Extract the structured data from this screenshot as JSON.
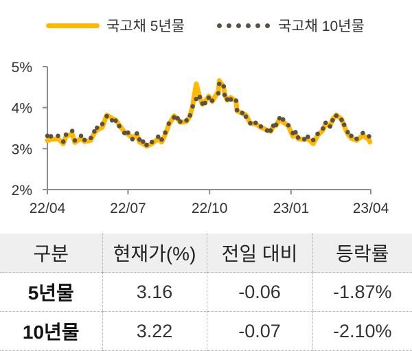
{
  "colors": {
    "series_5y": "#FFB900",
    "series_10y": "#5B5046",
    "axis": "#8c8c8c"
  },
  "chart_data": {
    "type": "line",
    "title": "",
    "xlabel": "",
    "ylabel": "",
    "ylim": [
      2,
      5
    ],
    "yticks": [
      "2%",
      "3%",
      "4%",
      "5%"
    ],
    "ytick_values": [
      2,
      3,
      4,
      5
    ],
    "xlim": [
      "2022-04-01",
      "2023-04-01"
    ],
    "xticks": [
      "22/04",
      "22/07",
      "22/10",
      "23/01",
      "23/04"
    ],
    "xtick_dates": [
      "2022-04-01",
      "2022-07-01",
      "2022-10-01",
      "2023-01-01",
      "2023-04-01"
    ],
    "grid": false,
    "legend_position": "top",
    "series": [
      {
        "name": "국고채 5년물",
        "style": "line",
        "x": [
          "2022-04-01",
          "2022-04-05",
          "2022-04-13",
          "2022-04-19",
          "2022-04-22",
          "2022-04-29",
          "2022-05-02",
          "2022-05-09",
          "2022-05-13",
          "2022-05-20",
          "2022-05-24",
          "2022-05-27",
          "2022-06-02",
          "2022-06-07",
          "2022-06-13",
          "2022-06-17",
          "2022-06-21",
          "2022-06-27",
          "2022-07-01",
          "2022-07-06",
          "2022-07-11",
          "2022-07-14",
          "2022-07-18",
          "2022-07-22",
          "2022-07-28",
          "2022-08-04",
          "2022-08-08",
          "2022-08-12",
          "2022-08-16",
          "2022-08-22",
          "2022-08-26",
          "2022-08-29",
          "2022-09-05",
          "2022-09-09",
          "2022-09-12",
          "2022-09-16",
          "2022-09-20",
          "2022-09-23",
          "2022-09-26",
          "2022-09-30",
          "2022-10-04",
          "2022-10-11",
          "2022-10-12",
          "2022-10-17",
          "2022-10-18",
          "2022-10-21",
          "2022-10-25",
          "2022-10-31",
          "2022-11-01",
          "2022-11-07",
          "2022-11-11",
          "2022-11-16",
          "2022-11-22",
          "2022-11-28",
          "2022-12-05",
          "2022-12-09",
          "2022-12-12",
          "2022-12-15",
          "2022-12-19",
          "2022-12-23",
          "2022-12-29",
          "2023-01-03",
          "2023-01-06",
          "2023-01-09",
          "2023-01-16",
          "2023-01-20",
          "2023-01-26",
          "2023-01-31",
          "2023-02-06",
          "2023-02-09",
          "2023-02-14",
          "2023-02-17",
          "2023-02-21",
          "2023-02-27",
          "2023-03-02",
          "2023-03-06",
          "2023-03-10",
          "2023-03-16",
          "2023-03-23",
          "2023-03-30",
          "2023-03-31"
        ],
        "y": [
          3.2,
          3.22,
          3.24,
          3.12,
          3.3,
          3.36,
          3.15,
          3.25,
          3.17,
          3.2,
          3.38,
          3.45,
          3.52,
          3.82,
          3.74,
          3.7,
          3.58,
          3.4,
          3.35,
          3.26,
          3.34,
          3.16,
          3.12,
          3.06,
          3.12,
          3.24,
          3.16,
          3.34,
          3.58,
          3.8,
          3.72,
          3.64,
          3.66,
          3.8,
          4.05,
          4.58,
          4.25,
          4.08,
          4.15,
          4.28,
          4.15,
          4.4,
          4.66,
          4.5,
          4.32,
          4.18,
          4.25,
          4.15,
          3.92,
          3.86,
          3.82,
          3.62,
          3.6,
          3.52,
          3.45,
          3.42,
          3.55,
          3.56,
          3.72,
          3.65,
          3.55,
          3.3,
          3.36,
          3.24,
          3.22,
          3.24,
          3.12,
          3.32,
          3.45,
          3.6,
          3.55,
          3.72,
          3.82,
          3.72,
          3.55,
          3.36,
          3.25,
          3.2,
          3.32,
          3.22,
          3.16
        ]
      },
      {
        "name": "국고채 10년물",
        "style": "dots",
        "x": [
          "2022-04-01",
          "2022-04-05",
          "2022-04-13",
          "2022-04-19",
          "2022-04-22",
          "2022-04-29",
          "2022-05-02",
          "2022-05-09",
          "2022-05-13",
          "2022-05-20",
          "2022-05-24",
          "2022-05-27",
          "2022-06-02",
          "2022-06-07",
          "2022-06-13",
          "2022-06-17",
          "2022-06-21",
          "2022-06-27",
          "2022-07-01",
          "2022-07-06",
          "2022-07-11",
          "2022-07-14",
          "2022-07-18",
          "2022-07-22",
          "2022-07-28",
          "2022-08-04",
          "2022-08-08",
          "2022-08-12",
          "2022-08-16",
          "2022-08-22",
          "2022-08-26",
          "2022-08-29",
          "2022-09-05",
          "2022-09-09",
          "2022-09-12",
          "2022-09-16",
          "2022-09-20",
          "2022-09-23",
          "2022-09-26",
          "2022-09-30",
          "2022-10-04",
          "2022-10-11",
          "2022-10-12",
          "2022-10-17",
          "2022-10-18",
          "2022-10-21",
          "2022-10-25",
          "2022-10-31",
          "2022-11-01",
          "2022-11-07",
          "2022-11-11",
          "2022-11-16",
          "2022-11-22",
          "2022-11-28",
          "2022-12-05",
          "2022-12-09",
          "2022-12-12",
          "2022-12-15",
          "2022-12-19",
          "2022-12-23",
          "2022-12-29",
          "2023-01-03",
          "2023-01-06",
          "2023-01-09",
          "2023-01-16",
          "2023-01-20",
          "2023-01-26",
          "2023-01-31",
          "2023-02-06",
          "2023-02-09",
          "2023-02-14",
          "2023-02-17",
          "2023-02-21",
          "2023-02-27",
          "2023-03-02",
          "2023-03-06",
          "2023-03-10",
          "2023-03-16",
          "2023-03-23",
          "2023-03-30"
        ],
        "y": [
          3.31,
          3.3,
          3.31,
          3.17,
          3.34,
          3.43,
          3.2,
          3.31,
          3.21,
          3.26,
          3.42,
          3.51,
          3.6,
          3.79,
          3.69,
          3.68,
          3.55,
          3.38,
          3.39,
          3.23,
          3.37,
          3.22,
          3.17,
          3.09,
          3.16,
          3.29,
          3.22,
          3.39,
          3.61,
          3.76,
          3.74,
          3.66,
          3.69,
          3.81,
          4.03,
          4.21,
          4.26,
          4.1,
          4.11,
          4.24,
          4.17,
          4.35,
          4.58,
          4.52,
          4.31,
          4.2,
          4.2,
          4.17,
          3.94,
          3.87,
          3.78,
          3.62,
          3.63,
          3.54,
          3.44,
          3.44,
          3.56,
          3.58,
          3.74,
          3.71,
          3.57,
          3.38,
          3.4,
          3.27,
          3.23,
          3.29,
          3.21,
          3.36,
          3.49,
          3.63,
          3.54,
          3.69,
          3.8,
          3.7,
          3.58,
          3.4,
          3.31,
          3.24,
          3.38,
          3.3
        ]
      }
    ]
  },
  "table": {
    "headers": [
      "구분",
      "현재가(%)",
      "전일 대비",
      "등락률"
    ],
    "rows": [
      [
        "5년물",
        "3.16",
        "-0.06",
        "-1.87%"
      ],
      [
        "10년물",
        "3.22",
        "-0.07",
        "-2.10%"
      ]
    ]
  }
}
